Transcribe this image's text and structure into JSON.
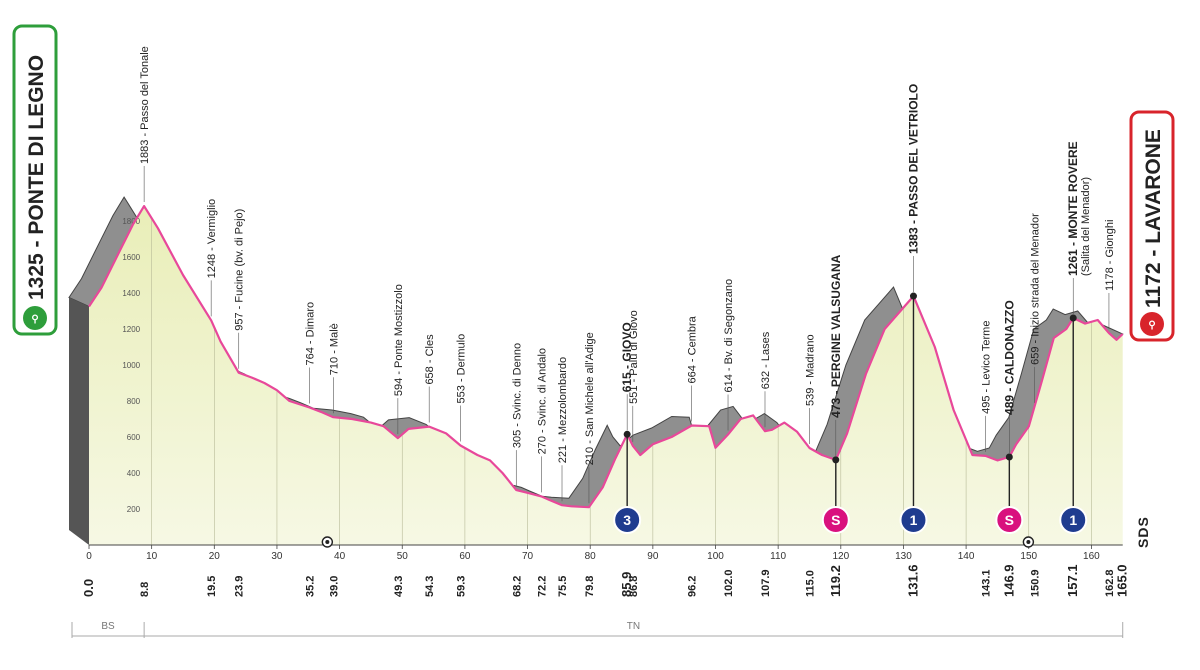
{
  "chart_data": {
    "type": "area",
    "title": "",
    "start": {
      "label": "1325 - PONTE DI LEGNO",
      "km": 0.0,
      "altitude": 1325
    },
    "finish": {
      "label": "1172 - LAVARONE",
      "km": 165.0,
      "altitude": 1172
    },
    "xlim": [
      0,
      165
    ],
    "ylim": [
      0,
      1900
    ],
    "x_ticks": [
      0,
      10,
      20,
      30,
      40,
      50,
      60,
      70,
      80,
      90,
      100,
      110,
      120,
      130,
      140,
      150,
      160
    ],
    "y_ticks": [
      200,
      400,
      600,
      800,
      1000,
      1200,
      1400,
      1600,
      1800
    ],
    "profile": [
      [
        0,
        1325
      ],
      [
        2,
        1430
      ],
      [
        5,
        1640
      ],
      [
        7,
        1780
      ],
      [
        8.8,
        1883
      ],
      [
        11,
        1760
      ],
      [
        15,
        1500
      ],
      [
        19.5,
        1248
      ],
      [
        21,
        1130
      ],
      [
        23.9,
        957
      ],
      [
        26,
        930
      ],
      [
        28,
        900
      ],
      [
        30,
        860
      ],
      [
        32,
        800
      ],
      [
        35.2,
        764
      ],
      [
        37,
        740
      ],
      [
        39,
        710
      ],
      [
        42,
        700
      ],
      [
        45,
        680
      ],
      [
        47,
        660
      ],
      [
        49.3,
        594
      ],
      [
        51,
        645
      ],
      [
        54.3,
        658
      ],
      [
        57,
        620
      ],
      [
        59.3,
        553
      ],
      [
        62,
        500
      ],
      [
        64,
        470
      ],
      [
        66,
        400
      ],
      [
        68.2,
        305
      ],
      [
        70,
        290
      ],
      [
        72.2,
        270
      ],
      [
        73.5,
        250
      ],
      [
        75.5,
        221
      ],
      [
        77,
        215
      ],
      [
        79.8,
        210
      ],
      [
        82,
        320
      ],
      [
        84,
        480
      ],
      [
        85.9,
        615
      ],
      [
        86.8,
        551
      ],
      [
        88,
        500
      ],
      [
        90,
        560
      ],
      [
        93,
        600
      ],
      [
        96.2,
        664
      ],
      [
        99,
        660
      ],
      [
        100,
        540
      ],
      [
        102,
        614
      ],
      [
        104,
        700
      ],
      [
        106,
        720
      ],
      [
        107.9,
        632
      ],
      [
        109,
        640
      ],
      [
        111,
        680
      ],
      [
        113,
        630
      ],
      [
        115,
        539
      ],
      [
        117,
        500
      ],
      [
        119.2,
        473
      ],
      [
        121,
        620
      ],
      [
        124,
        950
      ],
      [
        127,
        1200
      ],
      [
        131.6,
        1383
      ],
      [
        135,
        1100
      ],
      [
        138,
        750
      ],
      [
        141,
        500
      ],
      [
        143.1,
        495
      ],
      [
        145,
        470
      ],
      [
        146.9,
        489
      ],
      [
        148,
        560
      ],
      [
        150,
        659
      ],
      [
        152,
        900
      ],
      [
        154,
        1150
      ],
      [
        156,
        1200
      ],
      [
        157.1,
        1261
      ],
      [
        159,
        1230
      ],
      [
        161,
        1250
      ],
      [
        162.8,
        1178
      ],
      [
        164,
        1140
      ],
      [
        165,
        1172
      ]
    ],
    "passes": [
      {
        "km": 8.8,
        "label": "1883 - Passo del Tonale",
        "bold": false
      },
      {
        "km": 19.5,
        "label": "1248 - Vermiglio",
        "bold": false
      },
      {
        "km": 23.9,
        "label": "957 - Fucine (bv. di Pejo)",
        "bold": false
      },
      {
        "km": 35.2,
        "label": "764 - Dimaro",
        "bold": false
      },
      {
        "km": 39.0,
        "label": "710 - Malè",
        "bold": false
      },
      {
        "km": 49.3,
        "label": "594 - Ponte Mostizzolo",
        "bold": false
      },
      {
        "km": 54.3,
        "label": "658 - Cles",
        "bold": false
      },
      {
        "km": 59.3,
        "label": "553 - Dermulo",
        "bold": false
      },
      {
        "km": 68.2,
        "label": "305 - Svinc. di Denno",
        "bold": false
      },
      {
        "km": 72.2,
        "label": "270 - Svinc. di Andalo",
        "bold": false
      },
      {
        "km": 75.5,
        "label": "221 - Mezzolombardo",
        "bold": false
      },
      {
        "km": 79.8,
        "label": "210 - San Michele all'Adige",
        "bold": false
      },
      {
        "km": 85.9,
        "label": "615 - GIOVO",
        "bold": true
      },
      {
        "km": 86.8,
        "label": "551 - Palù di Giovo",
        "bold": false
      },
      {
        "km": 96.2,
        "label": "664 - Cembra",
        "bold": false
      },
      {
        "km": 102.0,
        "label": "614 - Bv. di Segonzano",
        "bold": false
      },
      {
        "km": 107.9,
        "label": "632 - Lases",
        "bold": false
      },
      {
        "km": 115.0,
        "label": "539 - Madrano",
        "bold": false
      },
      {
        "km": 119.2,
        "label": "473 - PERGINE VALSUGANA",
        "bold": true
      },
      {
        "km": 131.6,
        "label": "1383 - PASSO DEL VETRIOLO",
        "bold": true
      },
      {
        "km": 143.1,
        "label": "495 - Levico Terme",
        "bold": false
      },
      {
        "km": 146.9,
        "label": "489 - CALDONAZZO",
        "bold": true
      },
      {
        "km": 150.9,
        "label": "659 - Inizio strada del Menador",
        "bold": false
      },
      {
        "km": 157.1,
        "label": "1261 - MONTE ROVERE",
        "sublabel": "(Salita del Menador)",
        "bold": true
      },
      {
        "km": 162.8,
        "label": "1178 - Gionghi",
        "bold": false
      }
    ],
    "km_marks": [
      "0.0",
      "8.8",
      "19.5",
      "23.9",
      "35.2",
      "39.0",
      "49.3",
      "54.3",
      "59.3",
      "68.2",
      "72.2",
      "75.5",
      "79.8",
      "85.9",
      "86.8",
      "96.2",
      "102.0",
      "107.9",
      "115.0",
      "119.2",
      "131.6",
      "143.1",
      "146.9",
      "150.9",
      "157.1",
      "162.8",
      "165.0"
    ],
    "km_bold": [
      "0.0",
      "85.9",
      "119.2",
      "131.6",
      "146.9",
      "157.1",
      "165.0"
    ],
    "markers": [
      {
        "km": 85.9,
        "type": "gpm",
        "text": "3"
      },
      {
        "km": 119.2,
        "type": "sprint",
        "text": "S"
      },
      {
        "km": 131.6,
        "type": "gpm",
        "text": "1"
      },
      {
        "km": 146.9,
        "type": "sprint",
        "text": "S"
      },
      {
        "km": 157.1,
        "type": "gpm",
        "text": "1"
      }
    ],
    "tunnels_km": [
      39.0,
      150.9
    ],
    "regions": [
      {
        "label": "BS",
        "from": 0,
        "to": 8.8
      },
      {
        "label": "TN",
        "from": 8.8,
        "to": 165
      }
    ],
    "side_logo": "SDS",
    "colors": {
      "profile_line": "#e8489a",
      "area_fill": "#eef1c6",
      "shadow": "#8f8f8f",
      "start_frame": "#2e9e3b",
      "finish_frame": "#d8242b",
      "marker_blue": "#1f3c8f",
      "marker_pink": "#d9117e"
    }
  }
}
